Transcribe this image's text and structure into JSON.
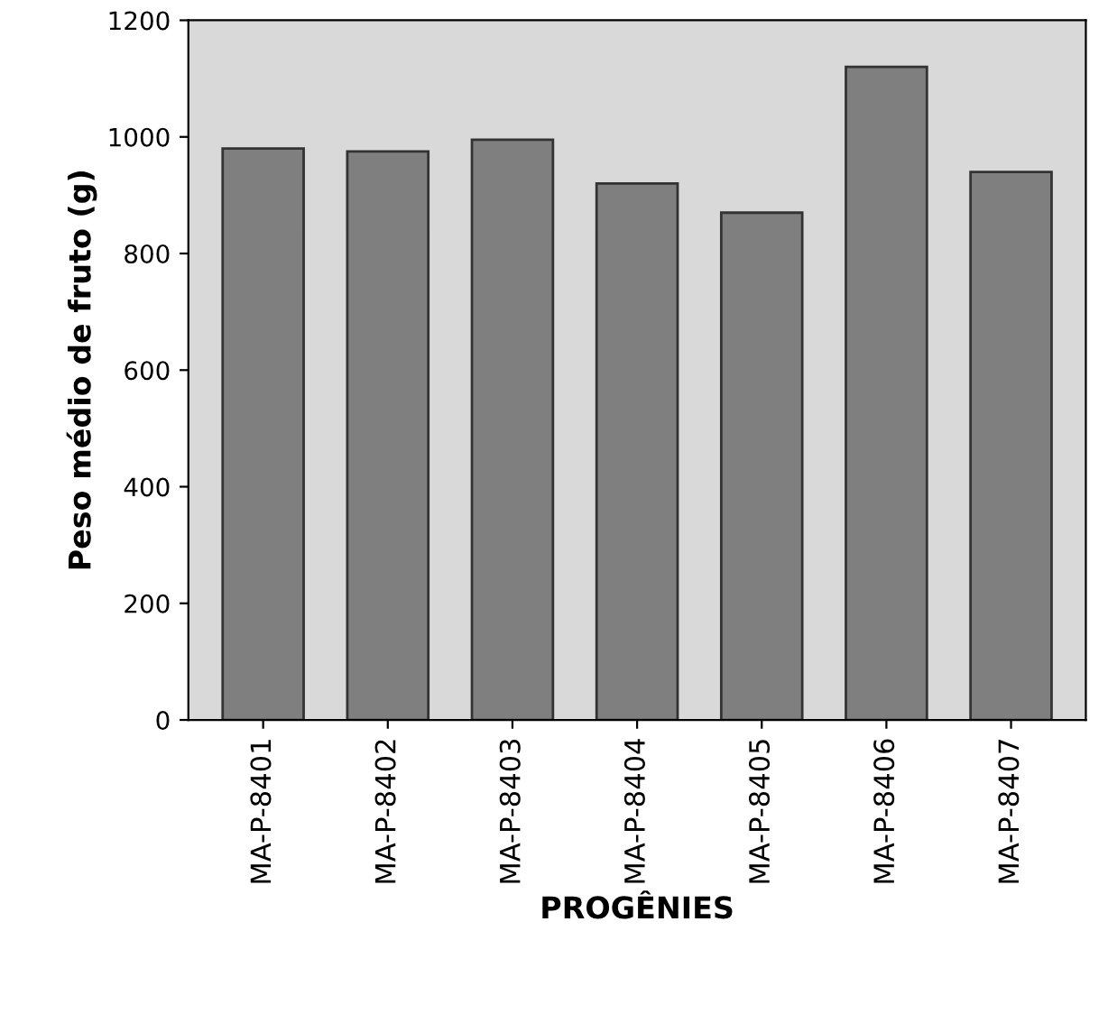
{
  "chart_data": {
    "type": "bar",
    "xlabel": "PROGÊNIES",
    "ylabel": "Peso médio de fruto (g)",
    "categories": [
      "MA-P-8401",
      "MA-P-8402",
      "MA-P-8403",
      "MA-P-8404",
      "MA-P-8405",
      "MA-P-8406",
      "MA-P-8407"
    ],
    "values": [
      980,
      975,
      995,
      920,
      870,
      1120,
      940
    ],
    "color": "#7f7f7f",
    "ylim": [
      0,
      1200
    ],
    "yticks": [
      0,
      200,
      400,
      600,
      800,
      1000,
      1200
    ],
    "grid": false
  }
}
